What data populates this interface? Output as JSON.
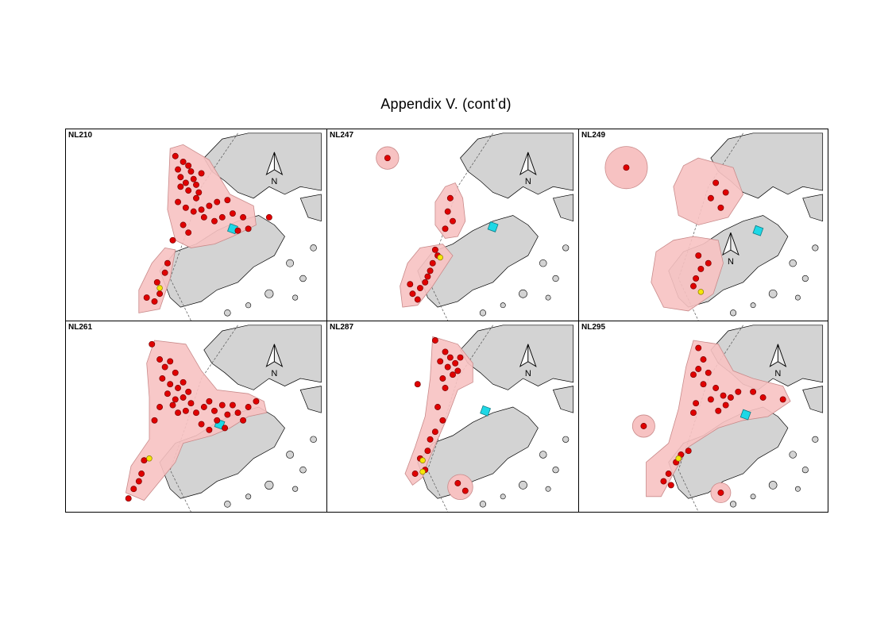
{
  "title": "Appendix V.  (cont’d)",
  "north_label": "N",
  "colors": {
    "land": "#d3d3d3",
    "coastline": "#000000",
    "range_fill": "#f7c2c2",
    "range_edge": "#c98a8a",
    "location_dot": "#e00000",
    "location_dot_edge": "#7a0000",
    "release_dot": "#f5e60a",
    "station_marker": "#1ed8e6",
    "boundary_line": "#555555"
  },
  "panels": [
    {
      "id": "NL210",
      "north_arrow": "top-right",
      "ranges": [
        {
          "points": [
            [
              0.4,
              0.1
            ],
            [
              0.45,
              0.08
            ],
            [
              0.55,
              0.16
            ],
            [
              0.63,
              0.34
            ],
            [
              0.72,
              0.4
            ],
            [
              0.73,
              0.5
            ],
            [
              0.64,
              0.56
            ],
            [
              0.57,
              0.6
            ],
            [
              0.48,
              0.62
            ],
            [
              0.42,
              0.58
            ],
            [
              0.39,
              0.42
            ]
          ]
        },
        {
          "points": [
            [
              0.38,
              0.62
            ],
            [
              0.42,
              0.63
            ],
            [
              0.4,
              0.78
            ],
            [
              0.36,
              0.94
            ],
            [
              0.28,
              0.96
            ],
            [
              0.28,
              0.84
            ],
            [
              0.33,
              0.7
            ]
          ]
        }
      ],
      "circles": [],
      "points": [
        [
          0.42,
          0.14
        ],
        [
          0.45,
          0.17
        ],
        [
          0.47,
          0.19
        ],
        [
          0.43,
          0.21
        ],
        [
          0.48,
          0.22
        ],
        [
          0.44,
          0.25
        ],
        [
          0.49,
          0.26
        ],
        [
          0.46,
          0.28
        ],
        [
          0.5,
          0.29
        ],
        [
          0.44,
          0.3
        ],
        [
          0.47,
          0.32
        ],
        [
          0.51,
          0.33
        ],
        [
          0.52,
          0.23
        ],
        [
          0.5,
          0.36
        ],
        [
          0.43,
          0.38
        ],
        [
          0.46,
          0.41
        ],
        [
          0.49,
          0.43
        ],
        [
          0.52,
          0.42
        ],
        [
          0.55,
          0.4
        ],
        [
          0.58,
          0.38
        ],
        [
          0.62,
          0.37
        ],
        [
          0.64,
          0.44
        ],
        [
          0.6,
          0.46
        ],
        [
          0.57,
          0.48
        ],
        [
          0.53,
          0.46
        ],
        [
          0.45,
          0.5
        ],
        [
          0.47,
          0.54
        ],
        [
          0.68,
          0.46
        ],
        [
          0.7,
          0.52
        ],
        [
          0.66,
          0.53
        ],
        [
          0.78,
          0.46
        ],
        [
          0.41,
          0.58
        ],
        [
          0.39,
          0.7
        ],
        [
          0.38,
          0.75
        ],
        [
          0.35,
          0.8
        ],
        [
          0.36,
          0.86
        ],
        [
          0.34,
          0.9
        ],
        [
          0.31,
          0.88
        ]
      ],
      "release_points": [
        [
          0.36,
          0.83
        ]
      ],
      "station": [
        0.64,
        0.52
      ]
    },
    {
      "id": "NL247",
      "north_arrow": "top-right",
      "ranges": [
        {
          "points": [
            [
              0.47,
              0.3
            ],
            [
              0.51,
              0.28
            ],
            [
              0.54,
              0.36
            ],
            [
              0.55,
              0.48
            ],
            [
              0.52,
              0.56
            ],
            [
              0.47,
              0.57
            ],
            [
              0.43,
              0.5
            ],
            [
              0.43,
              0.38
            ]
          ]
        },
        {
          "points": [
            [
              0.37,
              0.62
            ],
            [
              0.46,
              0.6
            ],
            [
              0.5,
              0.66
            ],
            [
              0.46,
              0.74
            ],
            [
              0.42,
              0.82
            ],
            [
              0.36,
              0.92
            ],
            [
              0.3,
              0.93
            ],
            [
              0.29,
              0.82
            ],
            [
              0.32,
              0.7
            ]
          ]
        }
      ],
      "circles": [
        [
          0.24,
          0.15,
          0.045
        ]
      ],
      "points": [
        [
          0.24,
          0.15
        ],
        [
          0.49,
          0.36
        ],
        [
          0.48,
          0.43
        ],
        [
          0.5,
          0.48
        ],
        [
          0.47,
          0.52
        ],
        [
          0.44,
          0.66
        ],
        [
          0.42,
          0.7
        ],
        [
          0.41,
          0.74
        ],
        [
          0.4,
          0.77
        ],
        [
          0.39,
          0.8
        ],
        [
          0.37,
          0.83
        ],
        [
          0.34,
          0.86
        ],
        [
          0.36,
          0.89
        ],
        [
          0.33,
          0.81
        ],
        [
          0.43,
          0.63
        ]
      ],
      "release_points": [
        [
          0.45,
          0.67
        ]
      ],
      "station": [
        0.66,
        0.51
      ]
    },
    {
      "id": "NL249",
      "north_arrow": "center",
      "ranges": [
        {
          "points": [
            [
              0.48,
              0.15
            ],
            [
              0.62,
              0.2
            ],
            [
              0.66,
              0.34
            ],
            [
              0.6,
              0.46
            ],
            [
              0.48,
              0.5
            ],
            [
              0.4,
              0.45
            ],
            [
              0.38,
              0.3
            ],
            [
              0.42,
              0.19
            ]
          ]
        },
        {
          "points": [
            [
              0.46,
              0.56
            ],
            [
              0.56,
              0.58
            ],
            [
              0.58,
              0.7
            ],
            [
              0.54,
              0.86
            ],
            [
              0.44,
              0.95
            ],
            [
              0.34,
              0.93
            ],
            [
              0.29,
              0.8
            ],
            [
              0.31,
              0.64
            ],
            [
              0.38,
              0.58
            ]
          ]
        }
      ],
      "circles": [
        [
          0.19,
          0.2,
          0.085
        ]
      ],
      "points": [
        [
          0.19,
          0.2
        ],
        [
          0.55,
          0.28
        ],
        [
          0.59,
          0.33
        ],
        [
          0.53,
          0.36
        ],
        [
          0.57,
          0.41
        ],
        [
          0.49,
          0.73
        ],
        [
          0.47,
          0.78
        ],
        [
          0.52,
          0.7
        ],
        [
          0.48,
          0.66
        ],
        [
          0.46,
          0.82
        ]
      ],
      "release_points": [
        [
          0.49,
          0.85
        ]
      ],
      "station": [
        0.72,
        0.53
      ],
      "north_arrow_pos": [
        0.61,
        0.66
      ]
    },
    {
      "id": "NL261",
      "north_arrow": "top-right",
      "ranges": [
        {
          "points": [
            [
              0.34,
              0.1
            ],
            [
              0.46,
              0.12
            ],
            [
              0.52,
              0.26
            ],
            [
              0.58,
              0.36
            ],
            [
              0.7,
              0.38
            ],
            [
              0.76,
              0.42
            ],
            [
              0.77,
              0.48
            ],
            [
              0.7,
              0.5
            ],
            [
              0.63,
              0.56
            ],
            [
              0.56,
              0.6
            ],
            [
              0.45,
              0.64
            ],
            [
              0.42,
              0.74
            ],
            [
              0.36,
              0.84
            ],
            [
              0.3,
              0.94
            ],
            [
              0.23,
              0.9
            ],
            [
              0.25,
              0.76
            ],
            [
              0.32,
              0.62
            ],
            [
              0.32,
              0.4
            ],
            [
              0.31,
              0.22
            ]
          ]
        }
      ],
      "circles": [],
      "points": [
        [
          0.33,
          0.12
        ],
        [
          0.36,
          0.2
        ],
        [
          0.38,
          0.24
        ],
        [
          0.4,
          0.21
        ],
        [
          0.42,
          0.27
        ],
        [
          0.37,
          0.3
        ],
        [
          0.4,
          0.33
        ],
        [
          0.43,
          0.35
        ],
        [
          0.45,
          0.32
        ],
        [
          0.39,
          0.38
        ],
        [
          0.42,
          0.41
        ],
        [
          0.45,
          0.4
        ],
        [
          0.48,
          0.43
        ],
        [
          0.46,
          0.47
        ],
        [
          0.43,
          0.48
        ],
        [
          0.5,
          0.48
        ],
        [
          0.53,
          0.45
        ],
        [
          0.55,
          0.42
        ],
        [
          0.57,
          0.47
        ],
        [
          0.6,
          0.44
        ],
        [
          0.62,
          0.49
        ],
        [
          0.64,
          0.44
        ],
        [
          0.66,
          0.48
        ],
        [
          0.68,
          0.52
        ],
        [
          0.7,
          0.45
        ],
        [
          0.73,
          0.42
        ],
        [
          0.52,
          0.54
        ],
        [
          0.55,
          0.57
        ],
        [
          0.58,
          0.52
        ],
        [
          0.61,
          0.56
        ],
        [
          0.36,
          0.45
        ],
        [
          0.34,
          0.52
        ],
        [
          0.47,
          0.37
        ],
        [
          0.41,
          0.44
        ],
        [
          0.3,
          0.73
        ],
        [
          0.29,
          0.8
        ],
        [
          0.28,
          0.84
        ],
        [
          0.26,
          0.88
        ],
        [
          0.24,
          0.93
        ]
      ],
      "release_points": [
        [
          0.32,
          0.72
        ]
      ],
      "station": [
        0.59,
        0.54
      ]
    },
    {
      "id": "NL287",
      "north_arrow": "top-right",
      "ranges": [
        {
          "points": [
            [
              0.42,
              0.08
            ],
            [
              0.52,
              0.12
            ],
            [
              0.58,
              0.22
            ],
            [
              0.58,
              0.32
            ],
            [
              0.52,
              0.36
            ],
            [
              0.48,
              0.5
            ],
            [
              0.44,
              0.62
            ],
            [
              0.4,
              0.74
            ],
            [
              0.38,
              0.82
            ],
            [
              0.34,
              0.86
            ],
            [
              0.31,
              0.8
            ],
            [
              0.35,
              0.66
            ],
            [
              0.39,
              0.5
            ],
            [
              0.41,
              0.3
            ]
          ]
        }
      ],
      "circles": [
        [
          0.53,
          0.87,
          0.05
        ]
      ],
      "points": [
        [
          0.43,
          0.1
        ],
        [
          0.47,
          0.16
        ],
        [
          0.49,
          0.19
        ],
        [
          0.51,
          0.22
        ],
        [
          0.48,
          0.24
        ],
        [
          0.52,
          0.26
        ],
        [
          0.5,
          0.28
        ],
        [
          0.46,
          0.3
        ],
        [
          0.53,
          0.19
        ],
        [
          0.45,
          0.21
        ],
        [
          0.47,
          0.35
        ],
        [
          0.44,
          0.45
        ],
        [
          0.46,
          0.52
        ],
        [
          0.43,
          0.58
        ],
        [
          0.41,
          0.62
        ],
        [
          0.4,
          0.68
        ],
        [
          0.37,
          0.72
        ],
        [
          0.39,
          0.78
        ],
        [
          0.35,
          0.8
        ],
        [
          0.52,
          0.85
        ],
        [
          0.55,
          0.89
        ],
        [
          0.36,
          0.33
        ]
      ],
      "release_points": [
        [
          0.38,
          0.73
        ],
        [
          0.38,
          0.79
        ]
      ],
      "station": [
        0.63,
        0.47
      ],
      "stray_marker": [
        0.36,
        0.33
      ]
    },
    {
      "id": "NL295",
      "north_arrow": "top-right",
      "ranges": [
        {
          "points": [
            [
              0.46,
              0.1
            ],
            [
              0.56,
              0.12
            ],
            [
              0.62,
              0.26
            ],
            [
              0.7,
              0.3
            ],
            [
              0.82,
              0.34
            ],
            [
              0.85,
              0.42
            ],
            [
              0.76,
              0.5
            ],
            [
              0.66,
              0.52
            ],
            [
              0.56,
              0.56
            ],
            [
              0.44,
              0.66
            ],
            [
              0.38,
              0.8
            ],
            [
              0.33,
              0.92
            ],
            [
              0.27,
              0.92
            ],
            [
              0.27,
              0.74
            ],
            [
              0.36,
              0.64
            ],
            [
              0.4,
              0.46
            ],
            [
              0.43,
              0.24
            ]
          ]
        }
      ],
      "circles": [
        [
          0.26,
          0.55,
          0.045
        ],
        [
          0.57,
          0.9,
          0.04
        ]
      ],
      "points": [
        [
          0.48,
          0.14
        ],
        [
          0.5,
          0.2
        ],
        [
          0.48,
          0.25
        ],
        [
          0.52,
          0.27
        ],
        [
          0.46,
          0.28
        ],
        [
          0.5,
          0.33
        ],
        [
          0.55,
          0.35
        ],
        [
          0.58,
          0.39
        ],
        [
          0.61,
          0.4
        ],
        [
          0.59,
          0.44
        ],
        [
          0.56,
          0.47
        ],
        [
          0.53,
          0.41
        ],
        [
          0.47,
          0.43
        ],
        [
          0.46,
          0.48
        ],
        [
          0.64,
          0.37
        ],
        [
          0.7,
          0.37
        ],
        [
          0.74,
          0.4
        ],
        [
          0.82,
          0.41
        ],
        [
          0.44,
          0.68
        ],
        [
          0.41,
          0.7
        ],
        [
          0.39,
          0.74
        ],
        [
          0.36,
          0.8
        ],
        [
          0.34,
          0.84
        ],
        [
          0.37,
          0.86
        ],
        [
          0.26,
          0.55
        ],
        [
          0.57,
          0.9
        ]
      ],
      "release_points": [
        [
          0.4,
          0.72
        ]
      ],
      "station": [
        0.67,
        0.49
      ]
    }
  ]
}
